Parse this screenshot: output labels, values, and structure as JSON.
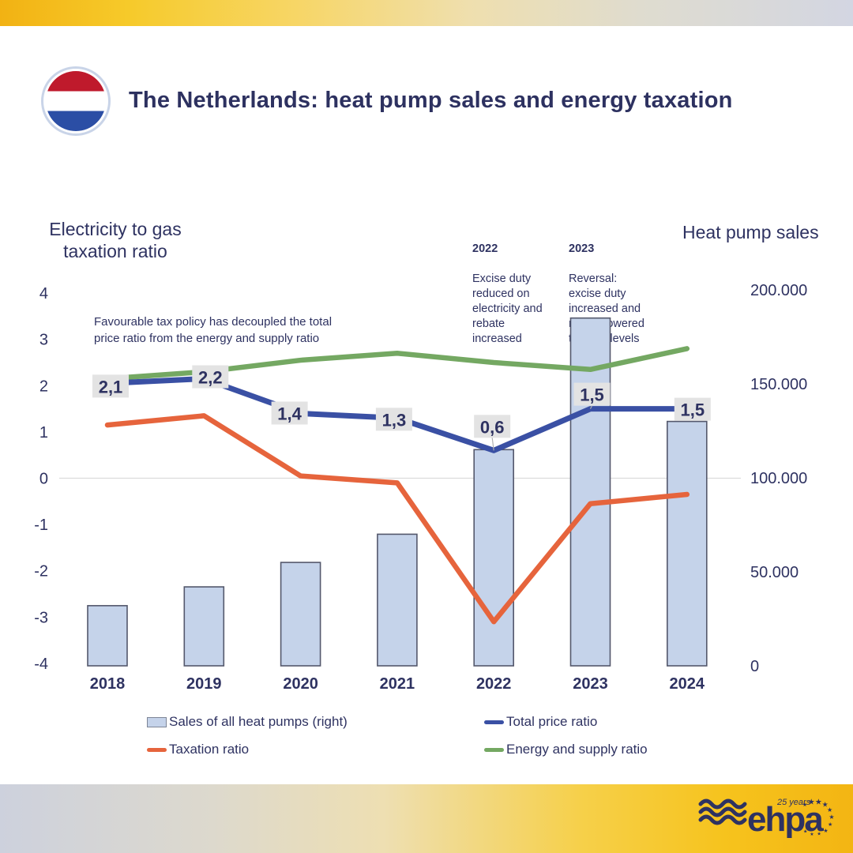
{
  "header": {
    "title": "The Netherlands: heat pump sales and energy taxation",
    "flag_icon": "netherlands-flag-icon"
  },
  "annotations": {
    "favourable": "Favourable tax policy has decoupled the total\nprice ratio from the energy and supply ratio",
    "notes": [
      {
        "year": "2022",
        "text": "Excise duty\nreduced on\nelectricity and\nrebate\nincreased"
      },
      {
        "year": "2023",
        "text": "Reversal:\nexcise duty\nincreased and\nrebate lowered\nto 2021 levels"
      }
    ]
  },
  "chart_data": {
    "type": "combo (bar + line, dual axis)",
    "categories": [
      "2018",
      "2019",
      "2020",
      "2021",
      "2022",
      "2023",
      "2024"
    ],
    "series": [
      {
        "name": "Sales of all heat pumps (right)",
        "type": "bar",
        "axis": "right",
        "values": [
          32000,
          42000,
          55000,
          70000,
          115000,
          185000,
          130000
        ]
      },
      {
        "name": "Total price ratio",
        "type": "line",
        "axis": "left",
        "values": [
          2.05,
          2.15,
          1.4,
          1.3,
          0.6,
          1.5,
          1.5
        ],
        "point_labels": [
          "2,1",
          "2,2",
          "1,4",
          "1,3",
          "0,6",
          "1,5",
          "1,5"
        ]
      },
      {
        "name": "Taxation ratio",
        "type": "line",
        "axis": "left",
        "values": [
          1.15,
          1.35,
          0.05,
          -0.1,
          -3.1,
          -0.55,
          -0.35
        ]
      },
      {
        "name": "Energy and supply ratio",
        "type": "line",
        "axis": "left",
        "values": [
          2.15,
          2.3,
          2.55,
          2.7,
          2.5,
          2.35,
          2.8
        ]
      }
    ],
    "left_axis": {
      "title": "Electricity to gas\ntaxation ratio",
      "ticks": [
        4,
        3,
        2,
        1,
        0,
        -1,
        -2,
        -3,
        -4
      ],
      "range": [
        -4,
        4
      ]
    },
    "right_axis": {
      "title": "Heat pump sales",
      "range": [
        0,
        200000
      ],
      "ticks": [
        {
          "label": "200.000",
          "value": 200000
        },
        {
          "label": "150.000",
          "value": 150000
        },
        {
          "label": "100.000",
          "value": 100000
        },
        {
          "label": "50.000",
          "value": 50000
        },
        {
          "label": "0",
          "value": 0
        }
      ]
    },
    "gridlines_at_left_value": [
      0
    ],
    "legend_position": "bottom"
  },
  "legend": {
    "items": [
      {
        "label": "Sales of all heat pumps (right)",
        "swatch": "bar",
        "color_key": "bar_fill"
      },
      {
        "label": "Total price ratio",
        "swatch": "line",
        "color_key": "blue_line"
      },
      {
        "label": "Taxation ratio",
        "swatch": "line",
        "color_key": "orange_line"
      },
      {
        "label": "Energy and supply ratio",
        "swatch": "line",
        "color_key": "green_line"
      }
    ]
  },
  "footer": {
    "logo_text": "ehpa",
    "logo_sub": "25 years",
    "waves_icon": "waves-icon",
    "stars_icon": "eu-stars-icon"
  },
  "colors": {
    "navy": "#2e3261",
    "bar_fill": "#c5d3ea",
    "bar_border": "#54586c",
    "blue_line": "#3a50a4",
    "orange_line": "#e6643c",
    "green_line": "#74a862",
    "label_box_bg": "#e3e3e3",
    "gridline": "#dcdcdc"
  }
}
